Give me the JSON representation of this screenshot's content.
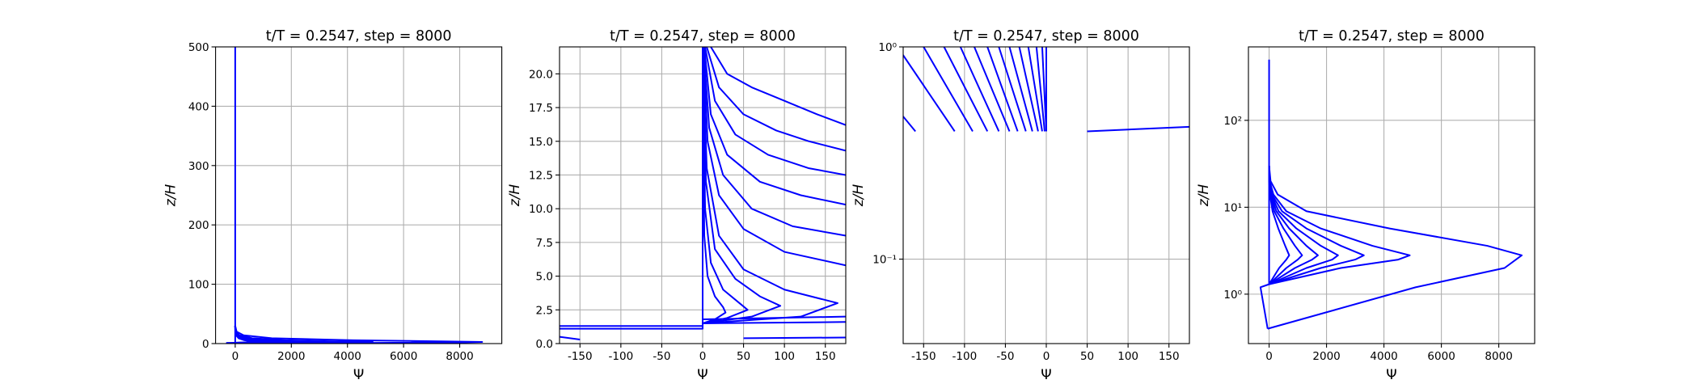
{
  "chart_data": [
    {
      "type": "line",
      "title": "t/T = 0.2547, step = 8000",
      "xlabel": "Ψ",
      "ylabel": "z/H",
      "color": "#0000ff",
      "grid": true,
      "xlim": [
        -700,
        9500
      ],
      "ylim": [
        0,
        500
      ],
      "xticks": [
        0,
        2000,
        4000,
        6000,
        8000
      ],
      "yticks": [
        0,
        100,
        200,
        300,
        400,
        500
      ],
      "series": [
        {
          "x": [
            0,
            0
          ],
          "values": [
            1.3,
            500
          ]
        },
        {
          "x": [
            0,
            -300,
            -50
          ],
          "values": [
            1.3,
            1.2,
            0.4
          ]
        },
        {
          "x": [
            -50,
            5100,
            8200,
            8800,
            7600,
            4200,
            1300,
            300,
            50,
            0
          ],
          "values": [
            0.4,
            1.2,
            2,
            2.8,
            3.6,
            5.7,
            9,
            14,
            20,
            30
          ]
        },
        {
          "x": [
            0,
            2500,
            4500,
            4900,
            3600,
            1800,
            600,
            150,
            20,
            0
          ],
          "values": [
            1.3,
            2,
            2.5,
            2.8,
            3.6,
            5.7,
            9,
            14,
            20,
            30
          ]
        },
        {
          "x": [
            0,
            1800,
            3000,
            3300,
            2500,
            1300,
            450,
            100,
            10,
            0
          ],
          "values": [
            1.3,
            2,
            2.5,
            2.8,
            3.6,
            5.7,
            9,
            14,
            20,
            30
          ]
        },
        {
          "x": [
            0,
            1300,
            2200,
            2400,
            1800,
            950,
            330,
            80,
            8,
            0
          ],
          "values": [
            1.3,
            2,
            2.5,
            2.8,
            3.6,
            5.7,
            9,
            14,
            20,
            30
          ]
        },
        {
          "x": [
            0,
            900,
            1500,
            1700,
            1300,
            700,
            250,
            60,
            6,
            0
          ],
          "values": [
            1.3,
            2,
            2.5,
            2.8,
            3.6,
            5.7,
            9,
            14,
            20,
            30
          ]
        },
        {
          "x": [
            0,
            600,
            1000,
            1150,
            900,
            500,
            180,
            45,
            5,
            0
          ],
          "values": [
            1.3,
            2,
            2.5,
            2.8,
            3.6,
            5.7,
            9,
            14,
            20,
            30
          ]
        },
        {
          "x": [
            0,
            350,
            600,
            700,
            560,
            320,
            120,
            30,
            3,
            0
          ],
          "values": [
            1.3,
            2,
            2.5,
            2.8,
            3.6,
            5.7,
            9,
            14,
            20,
            30
          ]
        }
      ]
    },
    {
      "type": "line",
      "title": "t/T = 0.2547, step = 8000",
      "xlabel": "Ψ",
      "ylabel": "z/H",
      "color": "#0000ff",
      "grid": true,
      "xlim": [
        -175,
        175
      ],
      "ylim": [
        0,
        22
      ],
      "xticks": [
        -150,
        -100,
        -50,
        0,
        50,
        100,
        150
      ],
      "yticks": [
        {
          "value": 0,
          "label": "0.0"
        },
        2.5,
        {
          "value": 5,
          "label": "5.0"
        },
        7.5,
        {
          "value": 10,
          "label": "10.0"
        },
        12.5,
        {
          "value": 15,
          "label": "15.0"
        },
        17.5,
        {
          "value": 20,
          "label": "20.0"
        }
      ],
      "series": [
        {
          "x": [
            0,
            0
          ],
          "values": [
            1.5,
            22
          ]
        },
        {
          "x": [
            -175,
            0,
            0,
            175
          ],
          "values": [
            1.3,
            1.3,
            1.5,
            1.6
          ]
        },
        {
          "x": [
            -175,
            0,
            0,
            175
          ],
          "values": [
            1.1,
            1.1,
            1.8,
            2.0
          ]
        },
        {
          "x": [
            -175,
            -150
          ],
          "values": [
            0.5,
            0.3
          ]
        },
        {
          "x": [
            50,
            175
          ],
          "values": [
            0.4,
            0.45
          ]
        },
        {
          "x": [
            10,
            30,
            60,
            100,
            140,
            175
          ],
          "values": [
            22,
            20,
            19,
            18,
            17,
            16.2
          ]
        },
        {
          "x": [
            5,
            20,
            50,
            90,
            130,
            175
          ],
          "values": [
            22,
            19,
            17,
            15.8,
            15,
            14.3
          ]
        },
        {
          "x": [
            3,
            15,
            40,
            80,
            130,
            175
          ],
          "values": [
            22,
            18,
            15.5,
            14,
            13,
            12.5
          ]
        },
        {
          "x": [
            2,
            10,
            30,
            70,
            120,
            175
          ],
          "values": [
            22,
            17,
            14,
            12,
            11,
            10.3
          ]
        },
        {
          "x": [
            1,
            8,
            25,
            60,
            110,
            175
          ],
          "values": [
            22,
            16,
            12.5,
            10,
            8.7,
            8
          ]
        },
        {
          "x": [
            1,
            6,
            20,
            50,
            100,
            175
          ],
          "values": [
            22,
            15,
            11,
            8.5,
            6.8,
            5.8
          ]
        },
        {
          "x": [
            0,
            5,
            20,
            50,
            100,
            165,
            120,
            0
          ],
          "values": [
            22,
            13,
            8,
            5.5,
            4,
            3,
            2,
            1.5
          ]
        },
        {
          "x": [
            0,
            4,
            15,
            40,
            70,
            95,
            60,
            0
          ],
          "values": [
            22,
            12,
            7,
            4.8,
            3.5,
            2.8,
            2,
            1.5
          ]
        },
        {
          "x": [
            0,
            3,
            10,
            25,
            45,
            55,
            30,
            0
          ],
          "values": [
            22,
            10,
            6,
            4,
            3,
            2.5,
            1.9,
            1.5
          ]
        },
        {
          "x": [
            0,
            2,
            6,
            15,
            25,
            28,
            15,
            0
          ],
          "values": [
            22,
            8,
            5,
            3.5,
            2.7,
            2.3,
            1.8,
            1.5
          ]
        }
      ]
    },
    {
      "type": "line",
      "title": "t/T = 0.2547, step = 8000",
      "xlabel": "Ψ",
      "ylabel": "z/H",
      "color": "#0000ff",
      "grid": true,
      "ylog": true,
      "xlim": [
        -175,
        175
      ],
      "ylim": [
        0.04,
        1
      ],
      "xticks": [
        -150,
        -100,
        -50,
        0,
        50,
        100,
        150
      ],
      "yticks": [
        {
          "value": 0.1,
          "label": "10⁻¹"
        },
        {
          "value": 1,
          "label": "10⁰"
        }
      ],
      "series": [
        {
          "x": [
            0,
            0
          ],
          "values": [
            0.4,
            1
          ]
        },
        {
          "x": [
            -175,
            -160
          ],
          "values": [
            0.47,
            0.4
          ]
        },
        {
          "x": [
            50,
            175
          ],
          "values": [
            0.4,
            0.42
          ]
        },
        {
          "x": [
            -178,
            -112
          ],
          "values": [
            0.95,
            0.4
          ]
        },
        {
          "x": [
            -150,
            -90
          ],
          "values": [
            1,
            0.4
          ]
        },
        {
          "x": [
            -125,
            -72
          ],
          "values": [
            1,
            0.4
          ]
        },
        {
          "x": [
            -105,
            -58
          ],
          "values": [
            1,
            0.4
          ]
        },
        {
          "x": [
            -88,
            -45
          ],
          "values": [
            1,
            0.4
          ]
        },
        {
          "x": [
            -72,
            -35
          ],
          "values": [
            1,
            0.4
          ]
        },
        {
          "x": [
            -58,
            -25
          ],
          "values": [
            1,
            0.4
          ]
        },
        {
          "x": [
            -45,
            -17
          ],
          "values": [
            1,
            0.4
          ]
        },
        {
          "x": [
            -33,
            -10
          ],
          "values": [
            1,
            0.4
          ]
        },
        {
          "x": [
            -22,
            -5
          ],
          "values": [
            1,
            0.4
          ]
        },
        {
          "x": [
            -12,
            -2
          ],
          "values": [
            1,
            0.4
          ]
        },
        {
          "x": [
            -5,
            0
          ],
          "values": [
            1,
            0.4
          ]
        }
      ]
    },
    {
      "type": "line",
      "title": "t/T = 0.2547, step = 8000",
      "xlabel": "Ψ",
      "ylabel": "z/H",
      "color": "#0000ff",
      "grid": true,
      "ylog": true,
      "xlim": [
        -720,
        9250
      ],
      "ylim": [
        0.27,
        700
      ],
      "xticks": [
        0,
        2000,
        4000,
        6000,
        8000
      ],
      "yticks": [
        {
          "value": 1,
          "label": "10⁰"
        },
        {
          "value": 10,
          "label": "10¹"
        },
        {
          "value": 100,
          "label": "10²"
        }
      ],
      "series": [
        {
          "x": [
            0,
            0
          ],
          "values": [
            1.3,
            500
          ]
        },
        {
          "x": [
            0,
            -300,
            -50
          ],
          "values": [
            1.3,
            1.2,
            0.4
          ]
        },
        {
          "x": [
            -50,
            5100,
            8200,
            8800,
            7600,
            4200,
            1300,
            300,
            50,
            0
          ],
          "values": [
            0.4,
            1.2,
            2,
            2.8,
            3.6,
            5.7,
            9,
            14,
            20,
            30
          ]
        },
        {
          "x": [
            0,
            2500,
            4500,
            4900,
            3600,
            1800,
            600,
            150,
            20,
            0
          ],
          "values": [
            1.3,
            2,
            2.5,
            2.8,
            3.6,
            5.7,
            9,
            14,
            20,
            30
          ]
        },
        {
          "x": [
            0,
            1800,
            3000,
            3300,
            2500,
            1300,
            450,
            100,
            10,
            0
          ],
          "values": [
            1.3,
            2,
            2.5,
            2.8,
            3.6,
            5.7,
            9,
            14,
            20,
            30
          ]
        },
        {
          "x": [
            0,
            1300,
            2200,
            2400,
            1800,
            950,
            330,
            80,
            8,
            0
          ],
          "values": [
            1.3,
            2,
            2.5,
            2.8,
            3.6,
            5.7,
            9,
            14,
            20,
            30
          ]
        },
        {
          "x": [
            0,
            900,
            1500,
            1700,
            1300,
            700,
            250,
            60,
            6,
            0
          ],
          "values": [
            1.3,
            2,
            2.5,
            2.8,
            3.6,
            5.7,
            9,
            14,
            20,
            30
          ]
        },
        {
          "x": [
            0,
            600,
            1000,
            1150,
            900,
            500,
            180,
            45,
            5,
            0
          ],
          "values": [
            1.3,
            2,
            2.5,
            2.8,
            3.6,
            5.7,
            9,
            14,
            20,
            30
          ]
        },
        {
          "x": [
            0,
            350,
            600,
            700,
            560,
            320,
            120,
            30,
            3,
            0
          ],
          "values": [
            1.3,
            2,
            2.5,
            2.8,
            3.6,
            5.7,
            9,
            14,
            20,
            30
          ]
        }
      ]
    }
  ]
}
